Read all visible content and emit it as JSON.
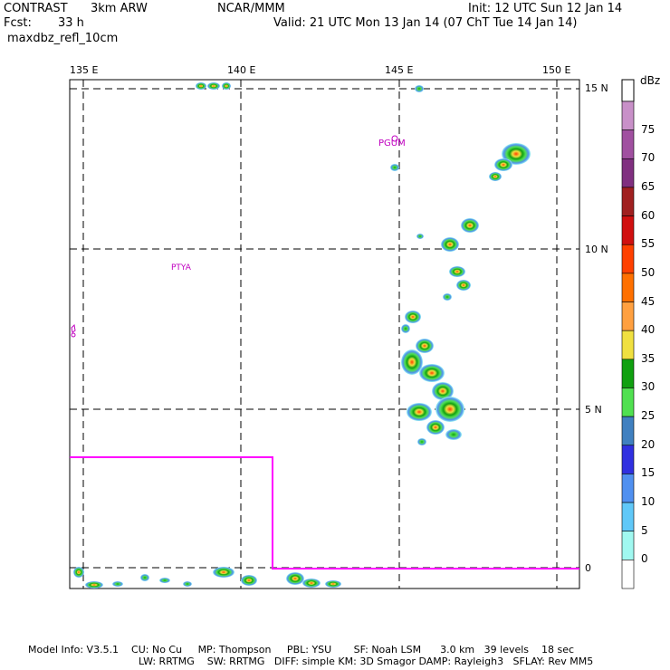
{
  "header": {
    "experiment": "CONTRAST",
    "model": "3km ARW",
    "fcst_label": "Fcst:",
    "fcst_value": "33 h",
    "field": "maxdbz_refl_10cm",
    "center": "NCAR/MMM",
    "init": "Init: 12 UTC Sun 12 Jan 14",
    "valid": "Valid: 21 UTC Mon 13 Jan 14 (07 ChT Tue 14 Jan 14)"
  },
  "map": {
    "lon_labels": [
      "135 E",
      "140 E",
      "145 E",
      "150 E"
    ],
    "lat_labels": [
      "15 N",
      "10 N",
      "5 N",
      "0"
    ],
    "stations": [
      "PGUM",
      "PTYA"
    ],
    "grid_style": "dashed",
    "box_color": "#ff00ff"
  },
  "colorbar": {
    "unit": "dBz",
    "levels": [
      "75",
      "70",
      "65",
      "60",
      "55",
      "50",
      "45",
      "40",
      "35",
      "30",
      "25",
      "20",
      "15",
      "10",
      "5",
      "0"
    ],
    "colors": [
      "#c890c8",
      "#a050a0",
      "#803080",
      "#a02020",
      "#d01010",
      "#ff4000",
      "#ff7000",
      "#ffa040",
      "#f0e040",
      "#10a010",
      "#50e050",
      "#4080c0",
      "#3030e0",
      "#5090f0",
      "#60c8f8",
      "#a0f8f0",
      "#ffffff"
    ]
  },
  "footer": {
    "line1": "Model Info: V3.5.1    CU: No Cu     MP: Thompson     PBL: YSU       SF: Noah LSM      3.0 km   39 levels    18 sec",
    "line2": "LW: RRTMG    SW: RRTMG   DIFF: simple KM: 3D Smagor DAMP: Rayleigh3   SFLAY: Rev MM5"
  }
}
